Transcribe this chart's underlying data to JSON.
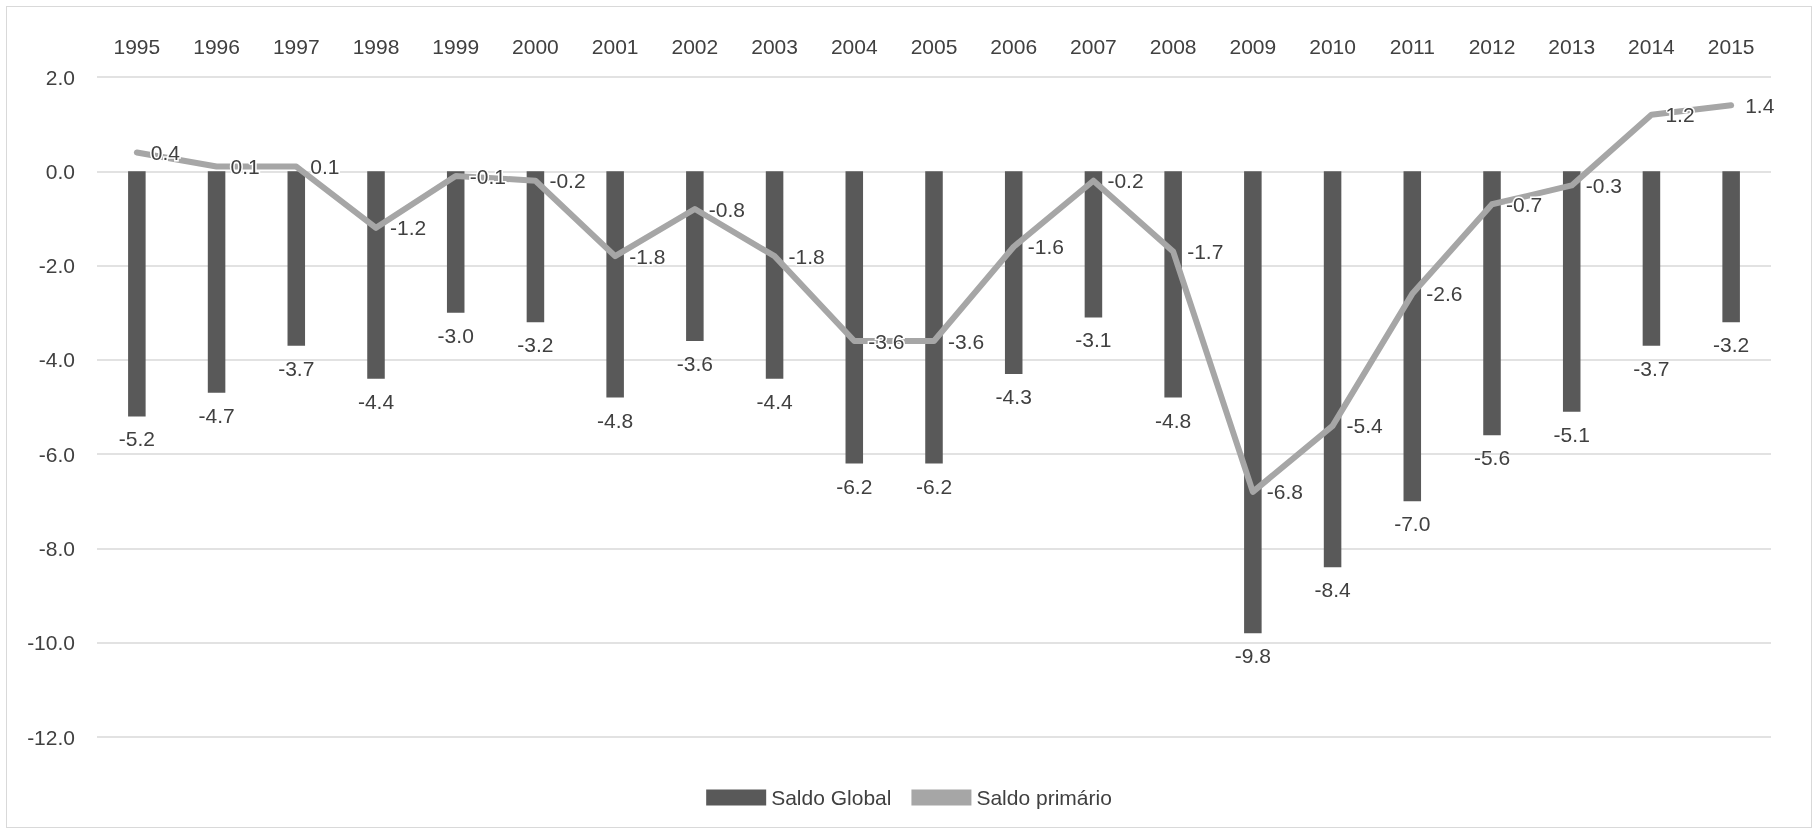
{
  "chart_data": {
    "type": "bar",
    "categories": [
      "1995",
      "1996",
      "1997",
      "1998",
      "1999",
      "2000",
      "2001",
      "2002",
      "2003",
      "2004",
      "2005",
      "2006",
      "2007",
      "2008",
      "2009",
      "2010",
      "2011",
      "2012",
      "2013",
      "2014",
      "2015"
    ],
    "series": [
      {
        "name": "Saldo Global",
        "color": "#595959",
        "values": [
          -5.2,
          -4.7,
          -3.7,
          -4.4,
          -3.0,
          -3.2,
          -4.8,
          -3.6,
          -4.4,
          -6.2,
          -6.2,
          -4.3,
          -3.1,
          -4.8,
          -9.8,
          -8.4,
          -7.0,
          -5.6,
          -5.1,
          -3.7,
          -3.2
        ],
        "value_labels": [
          "-5.2",
          "-4.7",
          "-3.7",
          "-4.4",
          "-3.0",
          "-3.2",
          "-4.8",
          "-3.6",
          "-4.4",
          "-6.2",
          "-6.2",
          "-4.3",
          "-3.1",
          "-4.8",
          "-9.8",
          "-8.4",
          "-7.0",
          "-5.6",
          "-5.1",
          "-3.7",
          "-3.2"
        ]
      },
      {
        "name": "Saldo primário",
        "type": "line",
        "color": "#a6a6a6",
        "values": [
          0.4,
          0.1,
          0.1,
          -1.2,
          -0.1,
          -0.2,
          -1.8,
          -0.8,
          -1.8,
          -3.6,
          -3.6,
          -1.6,
          -0.2,
          -1.7,
          -6.8,
          -5.4,
          -2.6,
          -0.7,
          -0.3,
          1.2,
          1.4
        ],
        "value_labels": [
          "0.4",
          "0.1",
          "0.1",
          "-1.2",
          "-0.1",
          "-0.2",
          "-1.8",
          "-0.8",
          "-1.8",
          "-3.6",
          "-3.6",
          "-1.6",
          "-0.2",
          "-1.7",
          "-6.8",
          "-5.4",
          "-2.6",
          "-0.7",
          "-0.3",
          "1.2",
          "1.4"
        ]
      }
    ],
    "ylim": [
      -12,
      2
    ],
    "yticks": [
      {
        "value": -12,
        "label": "-12.0"
      },
      {
        "value": -10,
        "label": "-10.0"
      },
      {
        "value": -8,
        "label": "-8.0"
      },
      {
        "value": -6,
        "label": "-6.0"
      },
      {
        "value": -4,
        "label": "-4.0"
      },
      {
        "value": -2,
        "label": "-2.0"
      },
      {
        "value": 0,
        "label": "0.0"
      },
      {
        "value": 2,
        "label": "2.0"
      }
    ],
    "grid": "y",
    "legend": "bottom",
    "marker": "none",
    "line_style": "solid"
  }
}
